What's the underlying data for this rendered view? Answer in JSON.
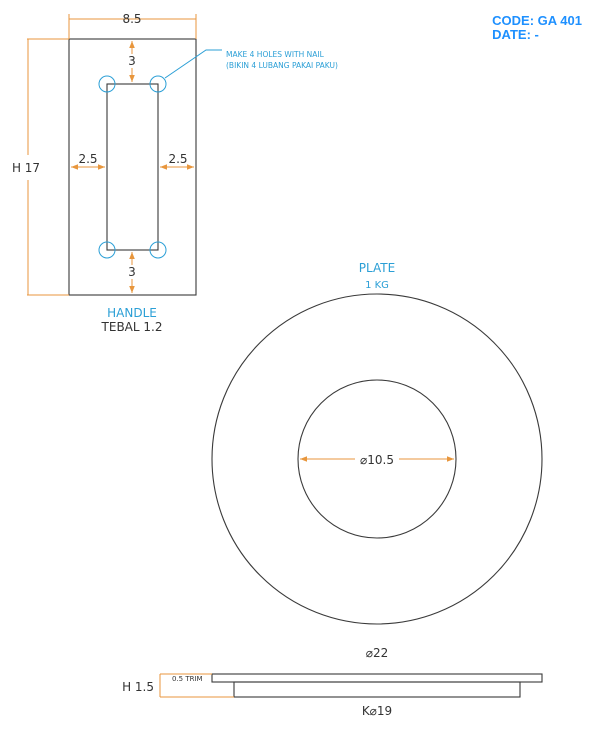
{
  "header": {
    "code": "CODE: GA 401",
    "date": "DATE: -"
  },
  "colors": {
    "outline": "#3a3a3a",
    "dimension": "#e8963c",
    "annotation": "#2b9fd6",
    "header_text": "#1e90ff"
  },
  "handle": {
    "title": "HANDLE",
    "thickness_label": "TEBAL 1.2",
    "width_dim": "8.5",
    "height_dim": "H 17",
    "top_offset_dim": "3",
    "bottom_offset_dim": "3",
    "left_offset_dim": "2.5",
    "right_offset_dim": "2.5",
    "note_line1": "MAKE 4 HOLES WITH NAIL",
    "note_line2": "(BIKIN 4 LUBANG PAKAI PAKU)"
  },
  "plate": {
    "title": "PLATE",
    "weight": "1 KG",
    "inner_diameter_dim": "⌀10.5",
    "outer_diameter_dim": "⌀22"
  },
  "side_view": {
    "height_dim": "H 1.5",
    "trim_label": "0.5 TRIM",
    "bottom_diameter_dim": "K⌀19"
  }
}
